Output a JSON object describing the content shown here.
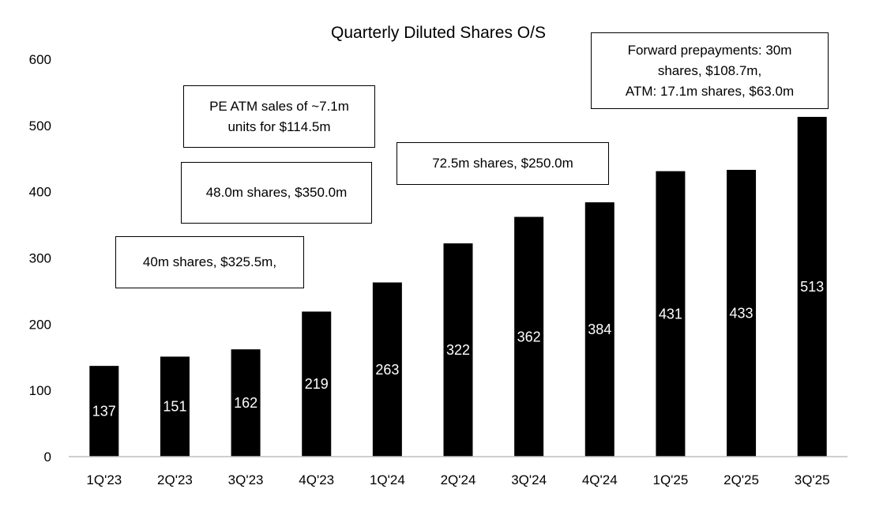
{
  "chart_data": {
    "type": "bar",
    "title": "Quarterly Diluted Shares O/S",
    "categories": [
      "1Q'23",
      "2Q'23",
      "3Q'23",
      "4Q'23",
      "1Q'24",
      "2Q'24",
      "3Q'24",
      "4Q'24",
      "1Q'25",
      "2Q'25",
      "3Q'25"
    ],
    "values": [
      137,
      151,
      162,
      219,
      263,
      322,
      362,
      384,
      431,
      433,
      513
    ],
    "yticks": [
      0,
      100,
      200,
      300,
      400,
      500,
      600
    ],
    "ylim": [
      0,
      600
    ],
    "xlabel": "",
    "ylabel": "",
    "grid": false,
    "bar_color": "#000000",
    "label_color": "#ffffff",
    "annotations": [
      {
        "lines": [
          "40m shares, $325.5m,"
        ]
      },
      {
        "lines": [
          "48.0m shares, $350.0m"
        ]
      },
      {
        "lines": [
          "PE ATM sales of ~7.1m",
          "units for $114.5m"
        ]
      },
      {
        "lines": [
          "72.5m shares, $250.0m"
        ]
      },
      {
        "lines": [
          "Forward prepayments: 30m",
          "shares, $108.7m,",
          "ATM: 17.1m shares, $63.0m"
        ]
      }
    ]
  }
}
